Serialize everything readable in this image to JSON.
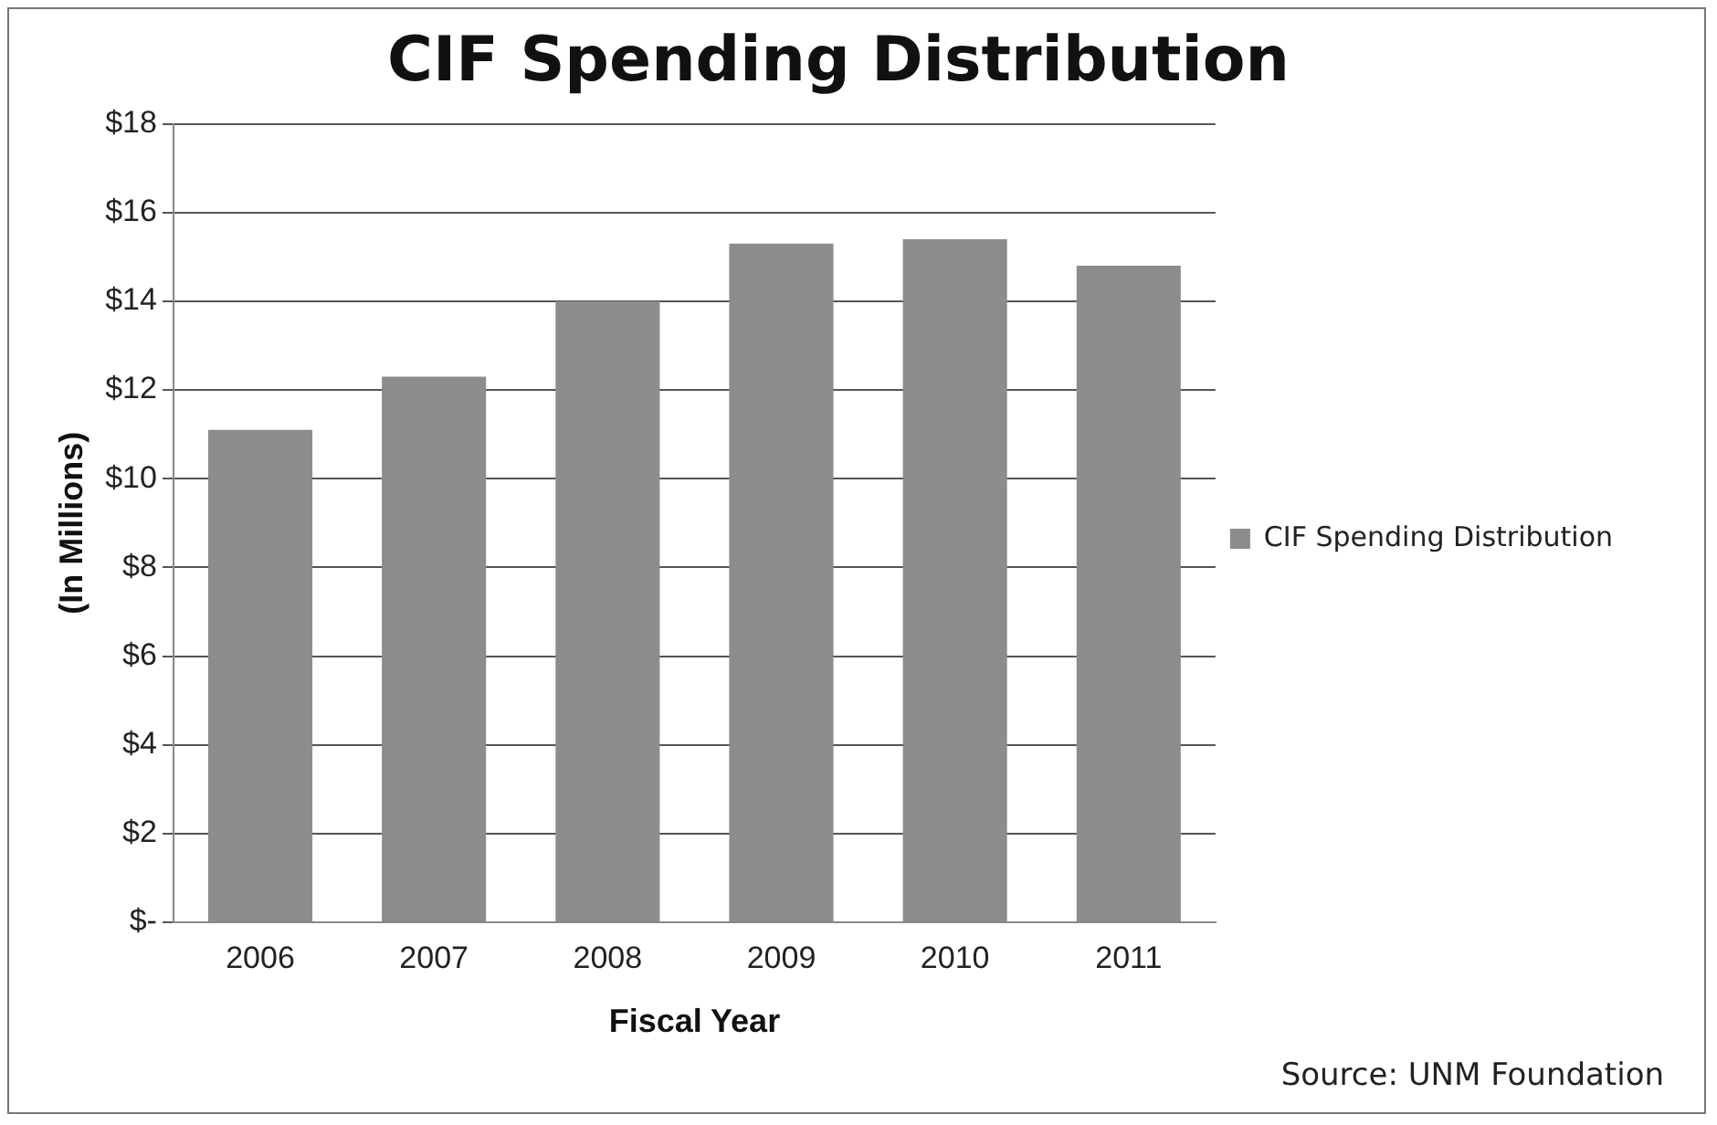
{
  "chart_data": {
    "type": "bar",
    "title": "CIF Spending Distribution",
    "xlabel": "Fiscal Year",
    "ylabel": "(In Millions)",
    "categories": [
      "2006",
      "2007",
      "2008",
      "2009",
      "2010",
      "2011"
    ],
    "series": [
      {
        "name": "CIF Spending Distribution",
        "color": "#8c8c8c",
        "values": [
          11.1,
          12.3,
          14.0,
          15.3,
          15.4,
          14.8
        ]
      }
    ],
    "ylim": [
      0,
      18
    ],
    "yticks": [
      {
        "value": 0,
        "label": "$-"
      },
      {
        "value": 2,
        "label": "$2"
      },
      {
        "value": 4,
        "label": "$4"
      },
      {
        "value": 6,
        "label": "$6"
      },
      {
        "value": 8,
        "label": "$8"
      },
      {
        "value": 10,
        "label": "$10"
      },
      {
        "value": 12,
        "label": "$12"
      },
      {
        "value": 14,
        "label": "$14"
      },
      {
        "value": 16,
        "label": "$16"
      },
      {
        "value": 18,
        "label": "$18"
      }
    ],
    "grid": "y",
    "legend": "right",
    "annotations": [
      "Source: UNM Foundation"
    ]
  }
}
